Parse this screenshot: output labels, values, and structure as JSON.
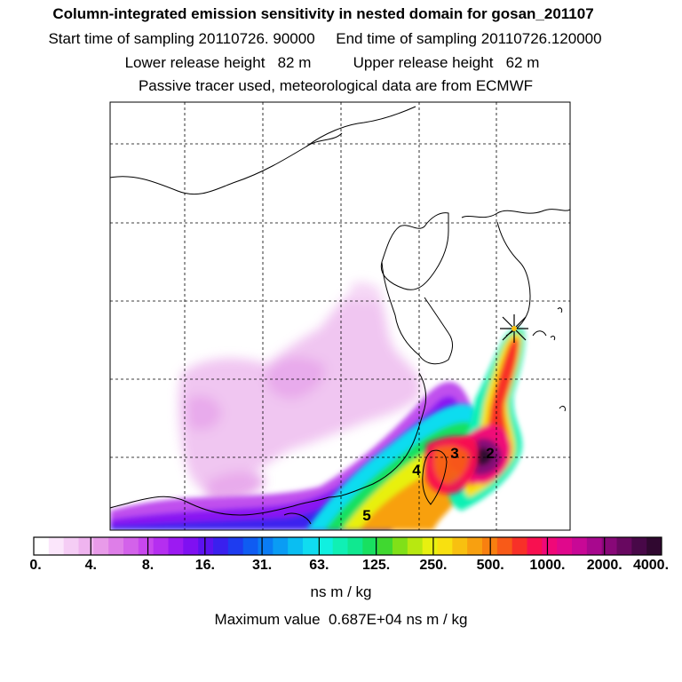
{
  "titles": {
    "line1": "Column-integrated emission sensitivity in nested domain for gosan_201107",
    "line2": "Start time of sampling 20110726. 90000     End time of sampling 20110726.120000",
    "line3": "Lower release height   82 m          Upper release height   62 m",
    "line4": "Passive tracer used, meteorological data are from ECMWF"
  },
  "contour_labels": [
    "2",
    "3",
    "4",
    "5"
  ],
  "colorbar": {
    "tick_labels": [
      "0.",
      "4.",
      "8.",
      "16.",
      "31.",
      "63.",
      "125.",
      "250.",
      "500.",
      "1000.",
      "2000.",
      "4000."
    ],
    "units": "ns m / kg",
    "colors": [
      "#ffffff",
      "#fbe6fb",
      "#f5cdf5",
      "#efb4ef",
      "#e89be9",
      "#de7ee8",
      "#d362ea",
      "#c847ee",
      "#b52ef0",
      "#9c1af2",
      "#7f10f2",
      "#5c12f0",
      "#3a20ee",
      "#1e3cf0",
      "#0f5cf2",
      "#0a7cf4",
      "#0a9cf4",
      "#0abef2",
      "#10dcf0",
      "#10f0e0",
      "#10f0b4",
      "#10e890",
      "#18e060",
      "#40d830",
      "#80e018",
      "#b8e810",
      "#e8f010",
      "#f8e010",
      "#f8c010",
      "#f8a010",
      "#f88010",
      "#f85a18",
      "#f83028",
      "#f81050",
      "#f00878",
      "#e0088c",
      "#c80896",
      "#a8088e",
      "#880878",
      "#680860",
      "#480848",
      "#300830"
    ]
  },
  "maximum": "Maximum value  0.687E+04 ns m / kg"
}
